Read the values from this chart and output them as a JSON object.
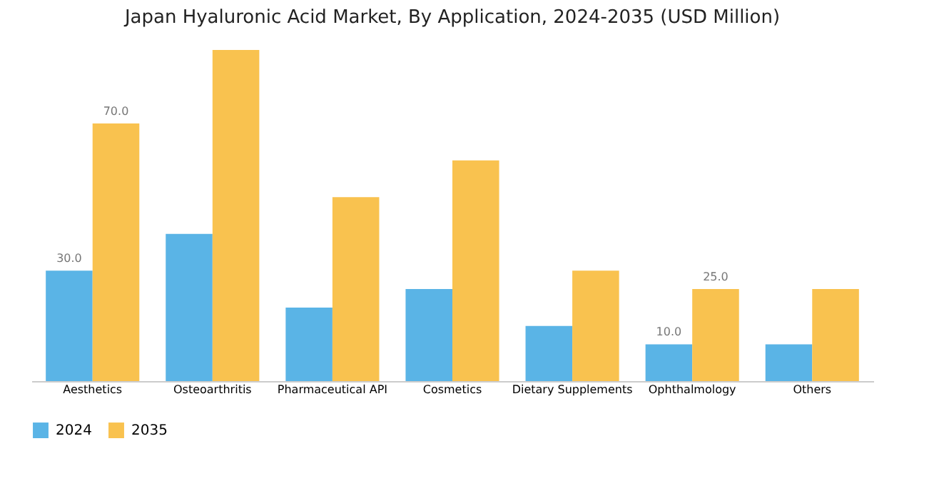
{
  "chart_data": {
    "type": "bar",
    "title": "Japan Hyaluronic Acid Market, By Application, 2024-2035 (USD Million)",
    "categories": [
      "Aesthetics",
      "Osteoarthritis",
      "Pharmaceutical API",
      "Cosmetics",
      "Dietary Supplements",
      "Ophthalmology",
      "Others"
    ],
    "series": [
      {
        "name": "2024",
        "color": "#5ab4e6",
        "values": [
          30,
          40,
          20,
          25,
          15,
          10,
          10
        ],
        "value_labels": [
          "30.0",
          null,
          null,
          null,
          null,
          "10.0",
          null
        ]
      },
      {
        "name": "2035",
        "color": "#f9c24f",
        "values": [
          70,
          90,
          50,
          60,
          30,
          25,
          25
        ],
        "value_labels": [
          "70.0",
          null,
          null,
          null,
          null,
          "25.0",
          null
        ]
      }
    ],
    "legend": "bottom",
    "grid": false
  }
}
